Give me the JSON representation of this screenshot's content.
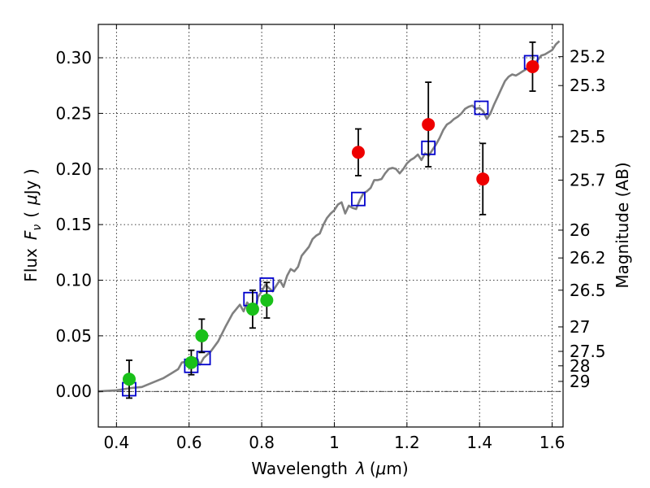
{
  "chart_data": {
    "type": "scatter",
    "xlabel": "Wavelength",
    "xlabel_symbol": "λ",
    "xlabel_unit_open": "(",
    "xlabel_unit_mu": "μ",
    "xlabel_unit_close": "m)",
    "ylabel": "Flux",
    "ylabel_symbol": "F",
    "ylabel_symbol_sub": "ν",
    "ylabel_unit_open": "(",
    "ylabel_unit_mu": "μ",
    "ylabel_unit_close": "Jy )",
    "y2label": "Magnitude (AB)",
    "xlim": [
      0.35,
      1.63
    ],
    "ylim": [
      -0.032,
      0.33
    ],
    "grid": true,
    "zero_line": true,
    "xticks": [
      0.4,
      0.6,
      0.8,
      1.0,
      1.2,
      1.4,
      1.6
    ],
    "xtick_labels": [
      "0.4",
      "0.6",
      "0.8",
      "1",
      "1.2",
      "1.4",
      "1.6"
    ],
    "yticks": [
      0.0,
      0.05,
      0.1,
      0.15,
      0.2,
      0.25,
      0.3
    ],
    "ytick_labels": [
      "0.00",
      "0.05",
      "0.10",
      "0.15",
      "0.20",
      "0.25",
      "0.30"
    ],
    "mag_ticks": [
      {
        "label": "25.2",
        "flux": 0.301
      },
      {
        "label": "25.3",
        "flux": 0.275
      },
      {
        "label": "25.5",
        "flux": 0.229
      },
      {
        "label": "25.7",
        "flux": 0.19
      },
      {
        "label": "26",
        "flux": 0.145
      },
      {
        "label": "26.2",
        "flux": 0.12
      },
      {
        "label": "26.5",
        "flux": 0.091
      },
      {
        "label": "27",
        "flux": 0.058
      },
      {
        "label": "27.5",
        "flux": 0.036
      },
      {
        "label": "28",
        "flux": 0.023
      },
      {
        "label": "29",
        "flux": 0.009
      }
    ],
    "colors": {
      "model": "#808080",
      "green": "#19c019",
      "red": "#ee0000",
      "squares": "#0000cc",
      "errorbar": "#000000"
    },
    "series": [
      {
        "kind": "line",
        "points": [
          [
            0.35,
            0.0
          ],
          [
            0.4,
            0.001
          ],
          [
            0.44,
            0.003
          ],
          [
            0.47,
            0.004
          ],
          [
            0.5,
            0.008
          ],
          [
            0.53,
            0.012
          ],
          [
            0.55,
            0.016
          ],
          [
            0.57,
            0.02
          ],
          [
            0.58,
            0.026
          ],
          [
            0.6,
            0.027
          ],
          [
            0.62,
            0.03
          ],
          [
            0.63,
            0.024
          ],
          [
            0.64,
            0.03
          ],
          [
            0.66,
            0.036
          ],
          [
            0.68,
            0.045
          ],
          [
            0.7,
            0.058
          ],
          [
            0.72,
            0.07
          ],
          [
            0.74,
            0.078
          ],
          [
            0.75,
            0.072
          ],
          [
            0.76,
            0.08
          ],
          [
            0.77,
            0.076
          ],
          [
            0.78,
            0.07
          ],
          [
            0.79,
            0.085
          ],
          [
            0.8,
            0.09
          ],
          [
            0.81,
            0.096
          ],
          [
            0.82,
            0.093
          ],
          [
            0.83,
            0.09
          ],
          [
            0.84,
            0.095
          ],
          [
            0.85,
            0.1
          ],
          [
            0.86,
            0.094
          ],
          [
            0.87,
            0.104
          ],
          [
            0.88,
            0.11
          ],
          [
            0.89,
            0.108
          ],
          [
            0.9,
            0.112
          ],
          [
            0.91,
            0.122
          ],
          [
            0.92,
            0.126
          ],
          [
            0.93,
            0.13
          ],
          [
            0.94,
            0.137
          ],
          [
            0.95,
            0.14
          ],
          [
            0.96,
            0.142
          ],
          [
            0.97,
            0.15
          ],
          [
            0.98,
            0.156
          ],
          [
            0.99,
            0.16
          ],
          [
            1.0,
            0.163
          ],
          [
            1.01,
            0.168
          ],
          [
            1.02,
            0.17
          ],
          [
            1.03,
            0.16
          ],
          [
            1.04,
            0.167
          ],
          [
            1.05,
            0.165
          ],
          [
            1.06,
            0.164
          ],
          [
            1.07,
            0.172
          ],
          [
            1.08,
            0.178
          ],
          [
            1.09,
            0.18
          ],
          [
            1.1,
            0.183
          ],
          [
            1.11,
            0.19
          ],
          [
            1.12,
            0.19
          ],
          [
            1.13,
            0.191
          ],
          [
            1.14,
            0.196
          ],
          [
            1.15,
            0.2
          ],
          [
            1.16,
            0.201
          ],
          [
            1.17,
            0.2
          ],
          [
            1.18,
            0.196
          ],
          [
            1.19,
            0.2
          ],
          [
            1.2,
            0.205
          ],
          [
            1.21,
            0.208
          ],
          [
            1.22,
            0.21
          ],
          [
            1.23,
            0.213
          ],
          [
            1.24,
            0.208
          ],
          [
            1.25,
            0.214
          ],
          [
            1.26,
            0.212
          ],
          [
            1.27,
            0.217
          ],
          [
            1.28,
            0.222
          ],
          [
            1.29,
            0.228
          ],
          [
            1.3,
            0.235
          ],
          [
            1.31,
            0.24
          ],
          [
            1.32,
            0.242
          ],
          [
            1.33,
            0.245
          ],
          [
            1.34,
            0.247
          ],
          [
            1.35,
            0.25
          ],
          [
            1.36,
            0.254
          ],
          [
            1.37,
            0.256
          ],
          [
            1.38,
            0.257
          ],
          [
            1.39,
            0.254
          ],
          [
            1.4,
            0.255
          ],
          [
            1.41,
            0.252
          ],
          [
            1.42,
            0.245
          ],
          [
            1.43,
            0.25
          ],
          [
            1.44,
            0.258
          ],
          [
            1.45,
            0.265
          ],
          [
            1.46,
            0.272
          ],
          [
            1.47,
            0.279
          ],
          [
            1.48,
            0.283
          ],
          [
            1.49,
            0.285
          ],
          [
            1.5,
            0.284
          ],
          [
            1.51,
            0.286
          ],
          [
            1.52,
            0.288
          ],
          [
            1.53,
            0.29
          ],
          [
            1.54,
            0.293
          ],
          [
            1.55,
            0.295
          ],
          [
            1.56,
            0.298
          ],
          [
            1.57,
            0.302
          ],
          [
            1.58,
            0.303
          ],
          [
            1.59,
            0.305
          ],
          [
            1.6,
            0.307
          ],
          [
            1.61,
            0.312
          ],
          [
            1.62,
            0.315
          ]
        ]
      },
      {
        "kind": "points",
        "marker": "circle",
        "color": "green",
        "points": [
          {
            "x": 0.435,
            "y": 0.011,
            "err": 0.017
          },
          {
            "x": 0.606,
            "y": 0.026,
            "err": 0.011
          },
          {
            "x": 0.635,
            "y": 0.05,
            "err": 0.015
          },
          {
            "x": 0.775,
            "y": 0.074,
            "err": 0.017
          },
          {
            "x": 0.814,
            "y": 0.082,
            "err": 0.016
          }
        ]
      },
      {
        "kind": "points",
        "marker": "circle",
        "color": "red",
        "points": [
          {
            "x": 1.066,
            "y": 0.215,
            "err": 0.021
          },
          {
            "x": 1.259,
            "y": 0.24,
            "err": 0.038
          },
          {
            "x": 1.409,
            "y": 0.191,
            "err": 0.032
          },
          {
            "x": 1.546,
            "y": 0.292,
            "err": 0.022
          }
        ]
      },
      {
        "kind": "points",
        "marker": "square",
        "color": "squares",
        "points": [
          {
            "x": 0.435,
            "y": 0.002
          },
          {
            "x": 0.606,
            "y": 0.023
          },
          {
            "x": 0.64,
            "y": 0.03
          },
          {
            "x": 0.769,
            "y": 0.083
          },
          {
            "x": 0.814,
            "y": 0.096
          },
          {
            "x": 1.066,
            "y": 0.173
          },
          {
            "x": 1.259,
            "y": 0.219
          },
          {
            "x": 1.405,
            "y": 0.255
          },
          {
            "x": 1.542,
            "y": 0.296
          }
        ]
      }
    ]
  }
}
